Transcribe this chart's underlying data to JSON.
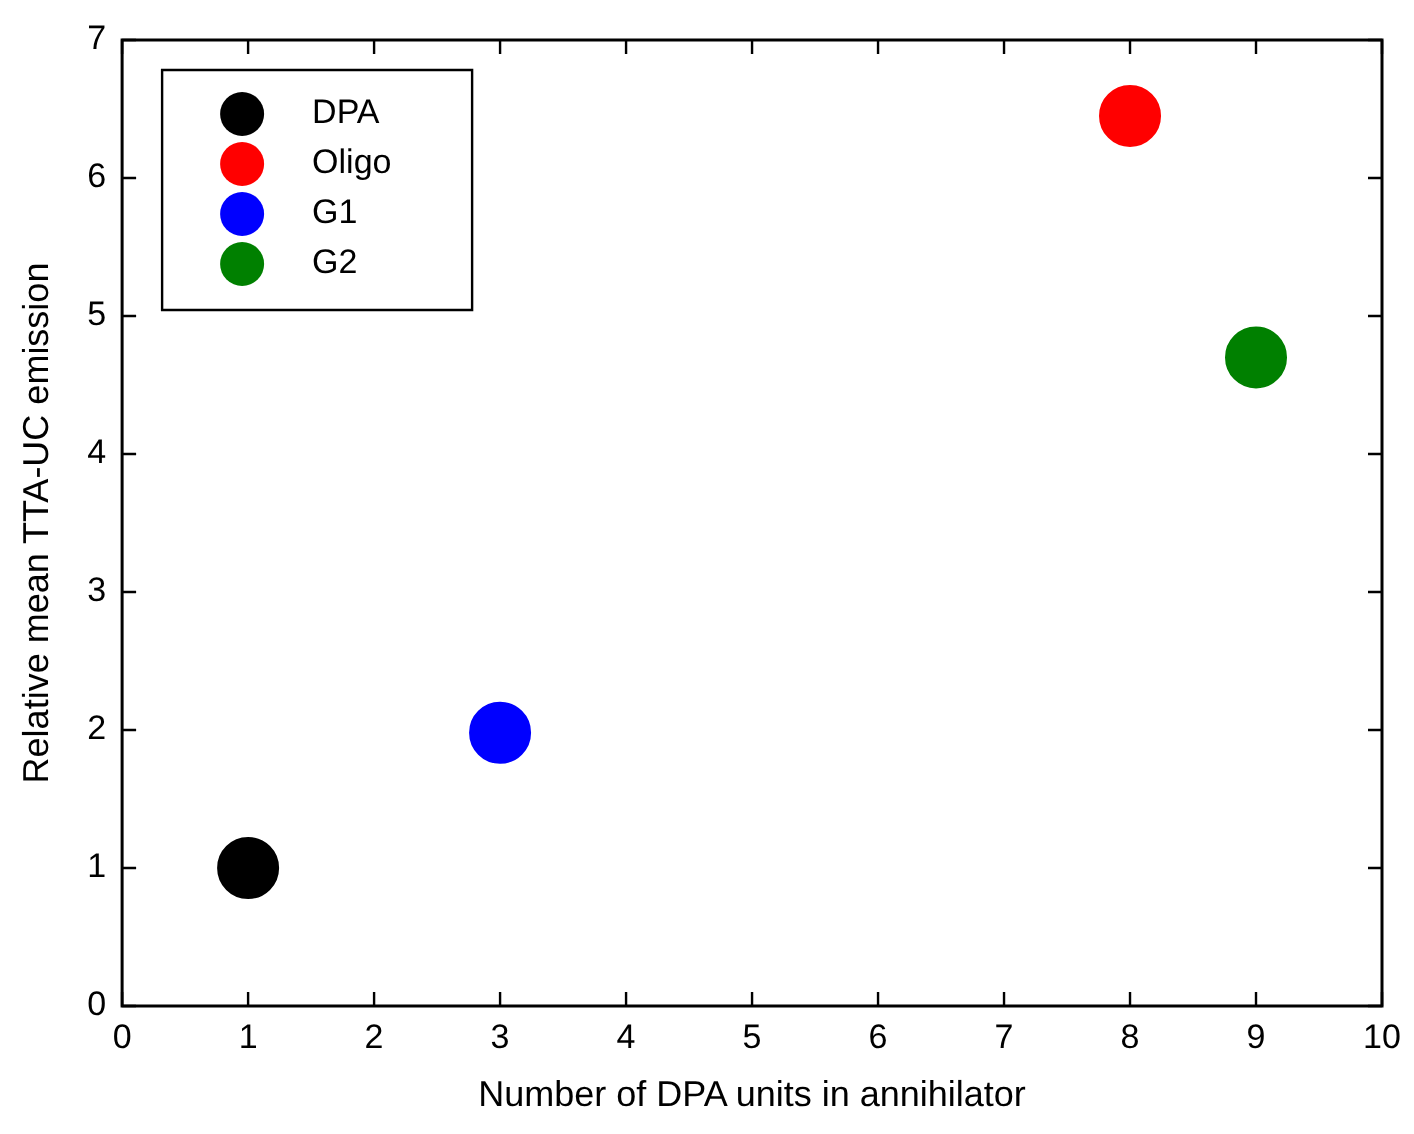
{
  "chart_data": {
    "type": "scatter",
    "xlabel": "Number of DPA units in annihilator",
    "ylabel": "Relative mean TTA-UC emission",
    "series": [
      {
        "name": "DPA",
        "color": "#000000",
        "x": [
          1
        ],
        "values": [
          1.0
        ]
      },
      {
        "name": "Oligo",
        "color": "#ff0000",
        "x": [
          8
        ],
        "values": [
          6.45
        ]
      },
      {
        "name": "G1",
        "color": "#0000ff",
        "x": [
          3
        ],
        "values": [
          1.98
        ]
      },
      {
        "name": "G2",
        "color": "#008000",
        "x": [
          9
        ],
        "values": [
          4.7
        ]
      }
    ],
    "xlim": [
      0,
      10
    ],
    "xticks": [
      0,
      1,
      2,
      3,
      4,
      5,
      6,
      7,
      8,
      9,
      10
    ],
    "ylim": [
      0,
      7
    ],
    "yticks": [
      0,
      1,
      2,
      3,
      4,
      5,
      6,
      7
    ],
    "grid": false,
    "legend": "top left",
    "marker": "circle"
  }
}
